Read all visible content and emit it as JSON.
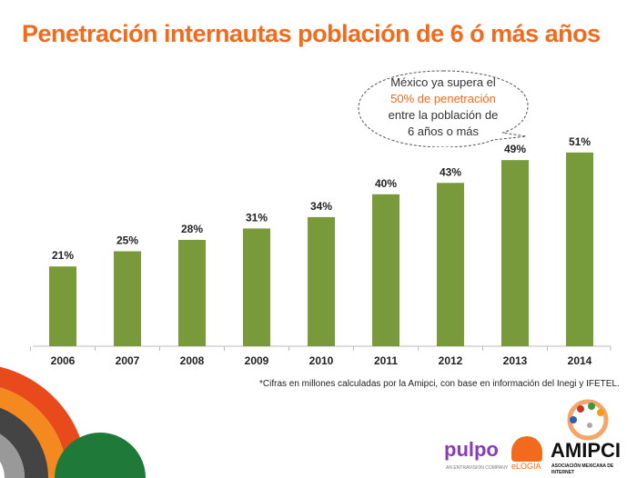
{
  "title": "Penetración internautas población de 6 ó más años",
  "callout": {
    "line1": "México ya supera el",
    "line2": "50% de penetración",
    "line3": "entre la población de",
    "line4": "6 años o más"
  },
  "note": "*Cifras en millones calculadas por la Amipci, con base en información del Inegi y IFETEL.",
  "logos": {
    "pulpo": "pulpo",
    "pulpo_sub": "AN ENTRAVISION COMPANY",
    "elogia": "eLOGIA",
    "amipci": "AMIPCI",
    "amipci_sub": "ASOCIACIÓN MEXICANA DE INTERNET"
  },
  "chart_data": {
    "type": "bar",
    "categories": [
      "2006",
      "2007",
      "2008",
      "2009",
      "2010",
      "2011",
      "2012",
      "2013",
      "2014"
    ],
    "values": [
      21,
      25,
      28,
      31,
      34,
      40,
      43,
      49,
      51
    ],
    "data_labels": [
      "21%",
      "25%",
      "28%",
      "31%",
      "34%",
      "40%",
      "43%",
      "49%",
      "51%"
    ],
    "bar_color": "#789a3a",
    "ylim": [
      0,
      100
    ],
    "grid": false
  }
}
